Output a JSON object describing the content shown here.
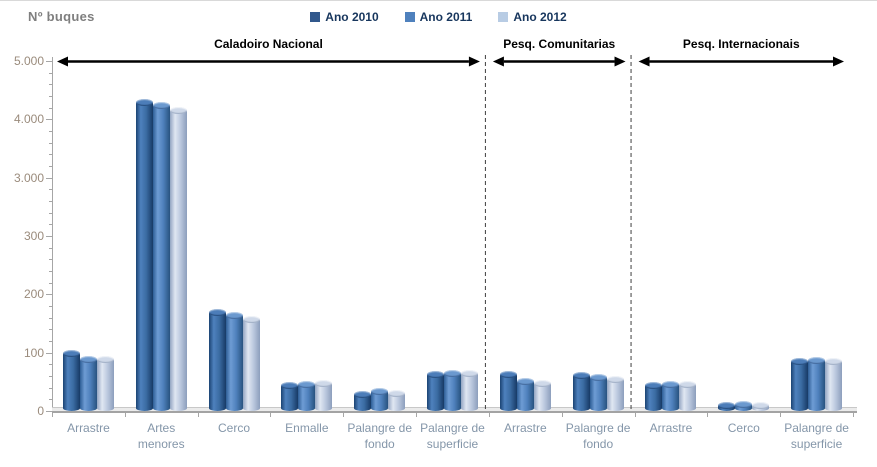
{
  "title": "Nº buques",
  "legend": {
    "items": [
      {
        "label": "Ano 2010",
        "color": "#31588C"
      },
      {
        "label": "Ano 2011",
        "color": "#4F81BD"
      },
      {
        "label": "Ano 2012",
        "color": "#B8CCE4"
      }
    ]
  },
  "sections": [
    {
      "label": "Caladoiro Nacional",
      "from_category": 0,
      "to_category": 5
    },
    {
      "label": "Pesq. Comunitarias",
      "from_category": 6,
      "to_category": 7
    },
    {
      "label": "Pesq. Internacionais",
      "from_category": 8,
      "to_category": 10
    }
  ],
  "chart_data": {
    "type": "bar",
    "subtype": "3d-cylinder-clustered",
    "title": "Nº buques",
    "ylabel": "Nº buques",
    "xlabel": "",
    "categories": [
      "Arrastre",
      "Artes menores",
      "Cerco",
      "Enmalle",
      "Palangre de fondo",
      "Palangre de superficie",
      "Arrastre",
      "Palangre de fondo",
      "Arrastre",
      "Cerco",
      "Palangre de superficie"
    ],
    "category_sections": [
      "Caladoiro Nacional",
      "Caladoiro Nacional",
      "Caladoiro Nacional",
      "Caladoiro Nacional",
      "Caladoiro Nacional",
      "Caladoiro Nacional",
      "Pesq. Comunitarias",
      "Pesq. Comunitarias",
      "Pesq. Internacionais",
      "Pesq. Internacionais",
      "Pesq. Internacionais"
    ],
    "series": [
      {
        "name": "Ano 2010",
        "color": "#31588C",
        "values": [
          100,
          4300,
          170,
          45,
          30,
          64,
          64,
          62,
          45,
          10,
          85
        ]
      },
      {
        "name": "Ano 2011",
        "color": "#4F81BD",
        "values": [
          90,
          4250,
          165,
          46,
          34,
          65,
          52,
          58,
          46,
          12,
          88
        ]
      },
      {
        "name": "Ano 2012",
        "color": "#B8CCE4",
        "values": [
          90,
          4160,
          158,
          48,
          31,
          66,
          48,
          55,
          46,
          11,
          86
        ]
      }
    ],
    "y_axis_ticks": [
      "5.000",
      "4.000",
      "3.000",
      "300",
      "200",
      "100",
      "0"
    ],
    "y_axis_tick_values": [
      5000,
      4000,
      3000,
      300,
      200,
      100,
      0
    ],
    "y_axis_scale_note": "non-linear axis: listed ticks evenly spaced (scale break between 300 and 3.000)",
    "minor_ticks_per_interval": 5,
    "grid": false,
    "legend_position": "top"
  }
}
